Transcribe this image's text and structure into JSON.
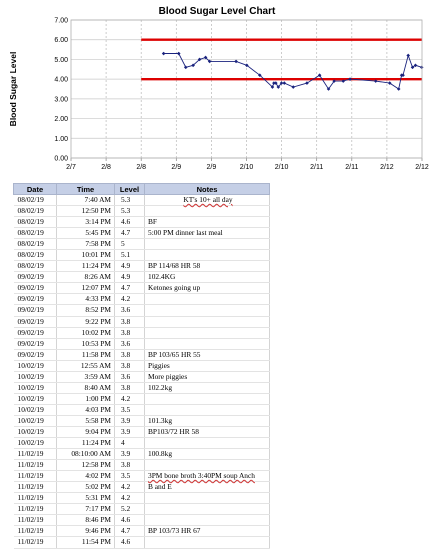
{
  "chart_data": {
    "type": "line",
    "title": "Blood Sugar Level Chart",
    "xlabel": "",
    "ylabel": "Blood Sugar Level",
    "x_tick_labels": [
      "2/7",
      "2/8",
      "2/8",
      "2/9",
      "2/9",
      "2/10",
      "2/10",
      "2/11",
      "2/11",
      "2/12",
      "2/12"
    ],
    "y_tick_labels": [
      "0.00",
      "1.00",
      "2.00",
      "3.00",
      "4.00",
      "5.00",
      "6.00",
      "7.00"
    ],
    "xlim": [
      "2019-02-07 00:00",
      "2019-02-12 00:00"
    ],
    "ylim": [
      0,
      7
    ],
    "grid": true,
    "series": [
      {
        "color": "#1a237e",
        "points": [
          {
            "x": "2019-02-08 07:40",
            "y": 5.3
          },
          {
            "x": "2019-02-08 12:50",
            "y": 5.3
          },
          {
            "x": "2019-02-08 15:14",
            "y": 4.6
          },
          {
            "x": "2019-02-08 17:45",
            "y": 4.7
          },
          {
            "x": "2019-02-08 19:58",
            "y": 5.0
          },
          {
            "x": "2019-02-08 22:01",
            "y": 5.1
          },
          {
            "x": "2019-02-08 23:24",
            "y": 4.9
          },
          {
            "x": "2019-02-09 08:26",
            "y": 4.9
          },
          {
            "x": "2019-02-09 12:07",
            "y": 4.7
          },
          {
            "x": "2019-02-09 16:33",
            "y": 4.2
          },
          {
            "x": "2019-02-09 20:52",
            "y": 3.6
          },
          {
            "x": "2019-02-09 21:22",
            "y": 3.8
          },
          {
            "x": "2019-02-09 22:02",
            "y": 3.8
          },
          {
            "x": "2019-02-09 22:53",
            "y": 3.6
          },
          {
            "x": "2019-02-09 23:58",
            "y": 3.8
          },
          {
            "x": "2019-02-10 00:55",
            "y": 3.8
          },
          {
            "x": "2019-02-10 03:59",
            "y": 3.6
          },
          {
            "x": "2019-02-10 08:40",
            "y": 3.8
          },
          {
            "x": "2019-02-10 13:00",
            "y": 4.2
          },
          {
            "x": "2019-02-10 16:03",
            "y": 3.5
          },
          {
            "x": "2019-02-10 17:58",
            "y": 3.9
          },
          {
            "x": "2019-02-10 21:04",
            "y": 3.9
          },
          {
            "x": "2019-02-10 23:24",
            "y": 4.0
          },
          {
            "x": "2019-02-11 08:10",
            "y": 3.9
          },
          {
            "x": "2019-02-11 12:58",
            "y": 3.8
          },
          {
            "x": "2019-02-11 16:02",
            "y": 3.5
          },
          {
            "x": "2019-02-11 17:02",
            "y": 4.2
          },
          {
            "x": "2019-02-11 17:31",
            "y": 4.2
          },
          {
            "x": "2019-02-11 19:17",
            "y": 5.2
          },
          {
            "x": "2019-02-11 20:46",
            "y": 4.6
          },
          {
            "x": "2019-02-11 21:46",
            "y": 4.7
          },
          {
            "x": "2019-02-11 23:54",
            "y": 4.6
          }
        ]
      }
    ],
    "reference_lines": [
      {
        "y": 6.0,
        "x_from": "2019-02-08 00:00",
        "x_to": "2019-02-12 00:00",
        "color": "#dd0000"
      },
      {
        "y": 4.0,
        "x_from": "2019-02-08 00:00",
        "x_to": "2019-02-12 00:00",
        "color": "#dd0000"
      }
    ]
  },
  "table": {
    "headers": [
      "Date",
      "Time",
      "Level",
      "Notes"
    ],
    "rows": [
      {
        "date": "08/02/19",
        "time": "7:40 AM",
        "level": "5.3",
        "notes": "KT's 10+ all day",
        "notes_center": true
      },
      {
        "date": "08/02/19",
        "time": "12:50 PM",
        "level": "5.3",
        "notes": ""
      },
      {
        "date": "08/02/19",
        "time": "3:14 PM",
        "level": "4.6",
        "notes": "BF"
      },
      {
        "date": "08/02/19",
        "time": "5:45 PM",
        "level": "4.7",
        "notes": "5:00 PM dinner last meal"
      },
      {
        "date": "08/02/19",
        "time": "7:58 PM",
        "level": "5",
        "notes": ""
      },
      {
        "date": "08/02/19",
        "time": "10:01 PM",
        "level": "5.1",
        "notes": ""
      },
      {
        "date": "08/02/19",
        "time": "11:24 PM",
        "level": "4.9",
        "notes": "BP 114/68 HR 58"
      },
      {
        "date": "09/02/19",
        "time": "8:26 AM",
        "level": "4.9",
        "notes": "102.4KG"
      },
      {
        "date": "09/02/19",
        "time": "12:07 PM",
        "level": "4.7",
        "notes": "Ketones going up"
      },
      {
        "date": "09/02/19",
        "time": "4:33 PM",
        "level": "4.2",
        "notes": ""
      },
      {
        "date": "09/02/19",
        "time": "8:52 PM",
        "level": "3.6",
        "notes": ""
      },
      {
        "date": "09/02/19",
        "time": "9:22 PM",
        "level": "3.8",
        "notes": ""
      },
      {
        "date": "09/02/19",
        "time": "10:02 PM",
        "level": "3.8",
        "notes": ""
      },
      {
        "date": "09/02/19",
        "time": "10:53 PM",
        "level": "3.6",
        "notes": ""
      },
      {
        "date": "09/02/19",
        "time": "11:58 PM",
        "level": "3.8",
        "notes": "BP 103/65 HR 55"
      },
      {
        "date": "10/02/19",
        "time": "12:55 AM",
        "level": "3.8",
        "notes": "Piggies"
      },
      {
        "date": "10/02/19",
        "time": "3:59 AM",
        "level": "3.6",
        "notes": "More piggies"
      },
      {
        "date": "10/02/19",
        "time": "8:40 AM",
        "level": "3.8",
        "notes": "102.2kg"
      },
      {
        "date": "10/02/19",
        "time": "1:00 PM",
        "level": "4.2",
        "notes": ""
      },
      {
        "date": "10/02/19",
        "time": "4:03 PM",
        "level": "3.5",
        "notes": ""
      },
      {
        "date": "10/02/19",
        "time": "5:58 PM",
        "level": "3.9",
        "notes": "101.3kg"
      },
      {
        "date": "10/02/19",
        "time": "9:04 PM",
        "level": "3.9",
        "notes": "BP103/72 HR 58"
      },
      {
        "date": "10/02/19",
        "time": "11:24 PM",
        "level": "4",
        "notes": ""
      },
      {
        "date": "11/02/19",
        "time": "08:10:00 AM",
        "level": "3.9",
        "notes": "100.8kg"
      },
      {
        "date": "11/02/19",
        "time": "12:58 PM",
        "level": "3.8",
        "notes": ""
      },
      {
        "date": "11/02/19",
        "time": "4:02 PM",
        "level": "3.5",
        "notes": "3PM bone broth 3:40PM  soup Anch"
      },
      {
        "date": "11/02/19",
        "time": "5:02 PM",
        "level": "4.2",
        "notes": "B and E"
      },
      {
        "date": "11/02/19",
        "time": "5:31 PM",
        "level": "4.2",
        "notes": ""
      },
      {
        "date": "11/02/19",
        "time": "7:17 PM",
        "level": "5.2",
        "notes": ""
      },
      {
        "date": "11/02/19",
        "time": "8:46 PM",
        "level": "4.6",
        "notes": ""
      },
      {
        "date": "11/02/19",
        "time": "9:46 PM",
        "level": "4.7",
        "notes": "BP 103/73 HR 67"
      },
      {
        "date": "11/02/19",
        "time": "11:54 PM",
        "level": "4.6",
        "notes": ""
      }
    ]
  }
}
